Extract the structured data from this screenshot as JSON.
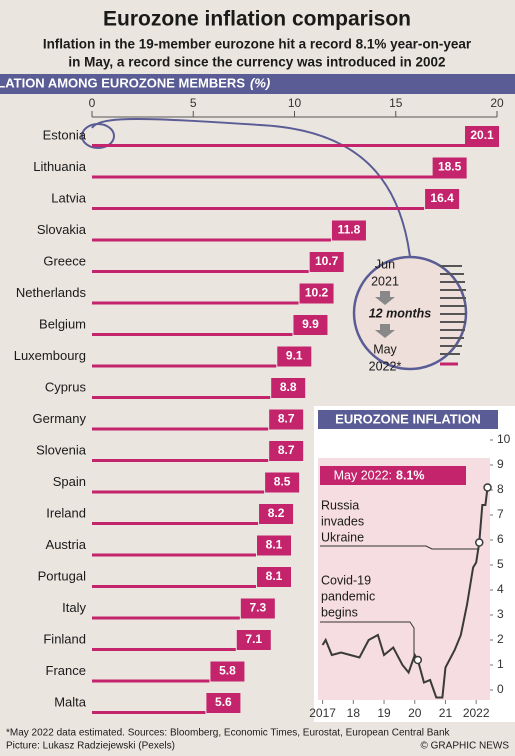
{
  "header": {
    "title": "Eurozone inflation comparison",
    "subtitle": [
      "Inflation in the 19-member eurozone hit a record 8.1% year-on-year",
      "in May, a record since the currency was introduced in 2002"
    ]
  },
  "chart_data": [
    {
      "type": "bar",
      "title": "SNAPSHOT OF INFLATION AMONG EUROZONE MEMBERS",
      "unit": "(%)",
      "categories": [
        "Estonia",
        "Lithuania",
        "Latvia",
        "Slovakia",
        "Greece",
        "Netherlands",
        "Belgium",
        "Luxembourg",
        "Cyprus",
        "Germany",
        "Slovenia",
        "Spain",
        "Ireland",
        "Austria",
        "Portugal",
        "Italy",
        "Finland",
        "France",
        "Malta"
      ],
      "values": [
        20.1,
        18.5,
        16.4,
        11.8,
        10.7,
        10.2,
        9.9,
        9.1,
        8.8,
        8.7,
        8.7,
        8.5,
        8.2,
        8.1,
        8.1,
        7.3,
        7.1,
        5.8,
        5.6
      ],
      "color": "#c4246c",
      "xlim": [
        0,
        20
      ],
      "xticks": [
        0,
        5,
        10,
        15,
        20
      ],
      "inset": {
        "start": [
          "Jun",
          "2021"
        ],
        "span": "12 months",
        "end": [
          "May",
          "2022*"
        ]
      }
    },
    {
      "type": "line",
      "title": "EUROZONE INFLATION",
      "x": [
        2017.0,
        2017.1,
        2017.3,
        2017.6,
        2017.9,
        2018.2,
        2018.5,
        2018.8,
        2019.0,
        2019.3,
        2019.6,
        2019.8,
        2020.0,
        2020.1,
        2020.3,
        2020.5,
        2020.7,
        2020.9,
        2021.0,
        2021.3,
        2021.5,
        2021.7,
        2021.9,
        2022.0,
        2022.1,
        2022.2,
        2022.3,
        2022.37
      ],
      "values": [
        1.8,
        2.0,
        1.4,
        1.5,
        1.4,
        1.3,
        2.0,
        2.2,
        1.4,
        1.7,
        1.0,
        0.7,
        1.4,
        1.2,
        0.3,
        0.4,
        -0.3,
        -0.3,
        0.9,
        1.6,
        2.2,
        3.4,
        4.9,
        5.1,
        5.9,
        7.4,
        7.4,
        8.1
      ],
      "color": "#3a3a3a",
      "xlim": [
        2016.85,
        2022.45
      ],
      "xticks": [
        {
          "value": 2017,
          "label": "2017"
        },
        {
          "value": 2018,
          "label": "18"
        },
        {
          "value": 2019,
          "label": "19"
        },
        {
          "value": 2020,
          "label": "20"
        },
        {
          "value": 2021,
          "label": "21"
        },
        {
          "value": 2022,
          "label": "2022"
        }
      ],
      "ylim": [
        -0.4,
        10.6
      ],
      "yticks": [
        0,
        1,
        2,
        3,
        4,
        5,
        6,
        7,
        8,
        9,
        10
      ],
      "highlight": {
        "label": "May 2022:",
        "value": "8.1%"
      },
      "annotations": [
        [
          "Russia",
          "invades",
          "Ukraine"
        ],
        [
          "Covid-19",
          "pandemic",
          "begins"
        ]
      ]
    }
  ],
  "footer": {
    "note": "*May 2022 data estimated. Sources: Bloomberg, Economic Times, Eurostat, European Central Bank",
    "credit": "Picture: Lukasz Radziejewski (Pexels)",
    "brand": "© GRAPHIC NEWS"
  }
}
